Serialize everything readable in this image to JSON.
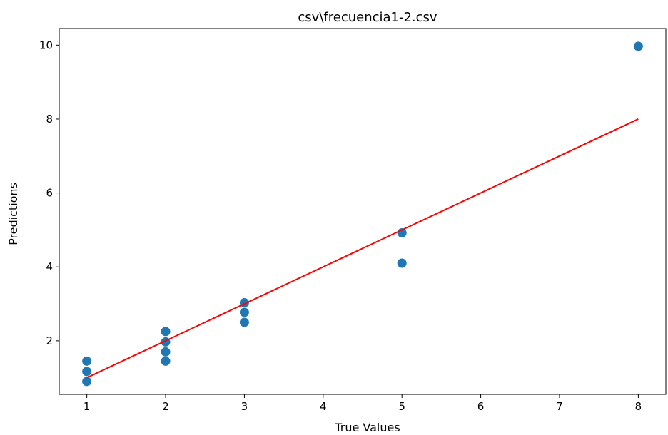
{
  "chart_data": {
    "type": "scatter",
    "title": "csv\\frecuencia1-2.csv",
    "xlabel": "True Values",
    "ylabel": "Predictions",
    "xlim": [
      0.65,
      8.35
    ],
    "ylim": [
      0.55,
      10.45
    ],
    "xticks": [
      1,
      2,
      3,
      4,
      5,
      6,
      7,
      8
    ],
    "yticks": [
      2,
      4,
      6,
      8,
      10
    ],
    "grid": false,
    "series": [
      {
        "kind": "scatter",
        "color": "#1f77b4",
        "points": [
          [
            1,
            1.45
          ],
          [
            1,
            1.17
          ],
          [
            1,
            0.9
          ],
          [
            2,
            2.25
          ],
          [
            2,
            1.97
          ],
          [
            2,
            1.7
          ],
          [
            2,
            1.45
          ],
          [
            3,
            3.03
          ],
          [
            3,
            2.77
          ],
          [
            3,
            2.5
          ],
          [
            5,
            4.92
          ],
          [
            5,
            4.1
          ],
          [
            8,
            9.97
          ]
        ]
      },
      {
        "kind": "line",
        "color": "#ff0000",
        "points": [
          [
            1,
            1
          ],
          [
            8,
            8
          ]
        ]
      }
    ]
  }
}
